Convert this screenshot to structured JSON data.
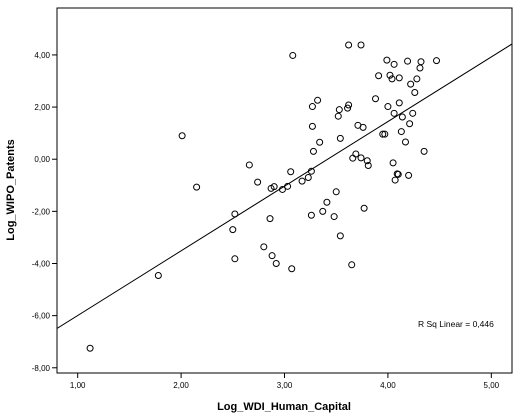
{
  "chart_data": {
    "type": "scatter",
    "xlabel": "Log_WDI_Human_Capital",
    "ylabel": "Log_WIPO_Patents",
    "xlim": [
      0.8,
      5.2
    ],
    "ylim": [
      -8.2,
      5.8
    ],
    "x_ticks": [
      1.0,
      2.0,
      3.0,
      4.0,
      5.0
    ],
    "x_tick_labels": [
      "1,00",
      "2,00",
      "3,00",
      "4,00",
      "5,00"
    ],
    "y_ticks": [
      -8.0,
      -6.0,
      -4.0,
      -2.0,
      0.0,
      2.0,
      4.0
    ],
    "y_tick_labels": [
      "-8,00",
      "-6,00",
      "-4,00",
      "-2,00",
      "0,00",
      "2,00",
      "4,00"
    ],
    "grid": false,
    "fit_line": {
      "x": [
        0.8,
        5.2
      ],
      "y": [
        -6.49,
        4.42
      ]
    },
    "annotation": "R Sq Linear = 0,446",
    "marker_color": "#000000",
    "background": "#ffffff",
    "points": [
      [
        1.12,
        -7.25
      ],
      [
        1.78,
        -4.46
      ],
      [
        2.01,
        0.9
      ],
      [
        2.15,
        -1.07
      ],
      [
        2.5,
        -2.7
      ],
      [
        2.52,
        -2.1
      ],
      [
        2.52,
        -3.82
      ],
      [
        2.66,
        -0.22
      ],
      [
        2.74,
        -0.88
      ],
      [
        2.8,
        -3.36
      ],
      [
        2.86,
        -2.28
      ],
      [
        2.87,
        -1.12
      ],
      [
        2.88,
        -3.7
      ],
      [
        2.9,
        -1.05
      ],
      [
        2.92,
        -4.0
      ],
      [
        2.98,
        -1.16
      ],
      [
        3.03,
        -1.04
      ],
      [
        3.06,
        -0.48
      ],
      [
        3.07,
        -4.2
      ],
      [
        3.08,
        3.98
      ],
      [
        3.17,
        -0.84
      ],
      [
        3.23,
        -0.7
      ],
      [
        3.26,
        -0.46
      ],
      [
        3.26,
        -2.15
      ],
      [
        3.27,
        2.02
      ],
      [
        3.27,
        1.26
      ],
      [
        3.28,
        0.3
      ],
      [
        3.32,
        2.26
      ],
      [
        3.34,
        0.65
      ],
      [
        3.37,
        -2.0
      ],
      [
        3.41,
        -1.65
      ],
      [
        3.48,
        -2.2
      ],
      [
        3.5,
        -1.25
      ],
      [
        3.52,
        1.65
      ],
      [
        3.53,
        1.9
      ],
      [
        3.54,
        0.8
      ],
      [
        3.54,
        -2.94
      ],
      [
        3.61,
        1.96
      ],
      [
        3.62,
        2.08
      ],
      [
        3.62,
        4.38
      ],
      [
        3.65,
        -4.05
      ],
      [
        3.66,
        0.04
      ],
      [
        3.69,
        0.2
      ],
      [
        3.71,
        1.3
      ],
      [
        3.74,
        0.05
      ],
      [
        3.74,
        4.38
      ],
      [
        3.76,
        1.22
      ],
      [
        3.77,
        -1.88
      ],
      [
        3.8,
        -0.06
      ],
      [
        3.81,
        -0.24
      ],
      [
        3.88,
        2.32
      ],
      [
        3.91,
        3.2
      ],
      [
        3.95,
        0.96
      ],
      [
        3.97,
        0.96
      ],
      [
        3.99,
        3.8
      ],
      [
        4.0,
        2.02
      ],
      [
        4.02,
        3.22
      ],
      [
        4.04,
        3.08
      ],
      [
        4.05,
        -0.14
      ],
      [
        4.06,
        3.64
      ],
      [
        4.06,
        1.76
      ],
      [
        4.07,
        -0.8
      ],
      [
        4.09,
        -0.56
      ],
      [
        4.1,
        -0.58
      ],
      [
        4.11,
        3.12
      ],
      [
        4.11,
        2.16
      ],
      [
        4.13,
        1.06
      ],
      [
        4.14,
        1.62
      ],
      [
        4.17,
        0.66
      ],
      [
        4.19,
        3.76
      ],
      [
        4.2,
        -0.62
      ],
      [
        4.21,
        1.36
      ],
      [
        4.22,
        2.88
      ],
      [
        4.24,
        1.76
      ],
      [
        4.26,
        2.56
      ],
      [
        4.28,
        3.08
      ],
      [
        4.31,
        3.5
      ],
      [
        4.32,
        3.74
      ],
      [
        4.35,
        0.3
      ],
      [
        4.47,
        3.78
      ]
    ]
  }
}
